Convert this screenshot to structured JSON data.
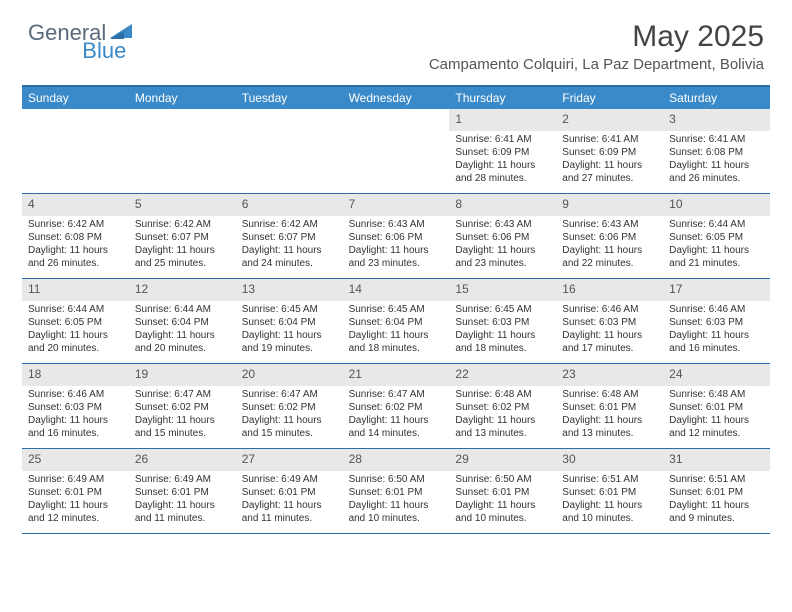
{
  "logo": {
    "general": "General",
    "blue": "Blue"
  },
  "title": "May 2025",
  "location": "Campamento Colquiri, La Paz Department, Bolivia",
  "colors": {
    "header_bg": "#3a8ac9",
    "border": "#2c6fa8",
    "daynum_bg": "#e8e8e8",
    "text": "#333333"
  },
  "weekdays": [
    "Sunday",
    "Monday",
    "Tuesday",
    "Wednesday",
    "Thursday",
    "Friday",
    "Saturday"
  ],
  "weeks": [
    [
      null,
      null,
      null,
      null,
      {
        "n": "1",
        "sr": "6:41 AM",
        "ss": "6:09 PM",
        "dl": "11 hours and 28 minutes."
      },
      {
        "n": "2",
        "sr": "6:41 AM",
        "ss": "6:09 PM",
        "dl": "11 hours and 27 minutes."
      },
      {
        "n": "3",
        "sr": "6:41 AM",
        "ss": "6:08 PM",
        "dl": "11 hours and 26 minutes."
      }
    ],
    [
      {
        "n": "4",
        "sr": "6:42 AM",
        "ss": "6:08 PM",
        "dl": "11 hours and 26 minutes."
      },
      {
        "n": "5",
        "sr": "6:42 AM",
        "ss": "6:07 PM",
        "dl": "11 hours and 25 minutes."
      },
      {
        "n": "6",
        "sr": "6:42 AM",
        "ss": "6:07 PM",
        "dl": "11 hours and 24 minutes."
      },
      {
        "n": "7",
        "sr": "6:43 AM",
        "ss": "6:06 PM",
        "dl": "11 hours and 23 minutes."
      },
      {
        "n": "8",
        "sr": "6:43 AM",
        "ss": "6:06 PM",
        "dl": "11 hours and 23 minutes."
      },
      {
        "n": "9",
        "sr": "6:43 AM",
        "ss": "6:06 PM",
        "dl": "11 hours and 22 minutes."
      },
      {
        "n": "10",
        "sr": "6:44 AM",
        "ss": "6:05 PM",
        "dl": "11 hours and 21 minutes."
      }
    ],
    [
      {
        "n": "11",
        "sr": "6:44 AM",
        "ss": "6:05 PM",
        "dl": "11 hours and 20 minutes."
      },
      {
        "n": "12",
        "sr": "6:44 AM",
        "ss": "6:04 PM",
        "dl": "11 hours and 20 minutes."
      },
      {
        "n": "13",
        "sr": "6:45 AM",
        "ss": "6:04 PM",
        "dl": "11 hours and 19 minutes."
      },
      {
        "n": "14",
        "sr": "6:45 AM",
        "ss": "6:04 PM",
        "dl": "11 hours and 18 minutes."
      },
      {
        "n": "15",
        "sr": "6:45 AM",
        "ss": "6:03 PM",
        "dl": "11 hours and 18 minutes."
      },
      {
        "n": "16",
        "sr": "6:46 AM",
        "ss": "6:03 PM",
        "dl": "11 hours and 17 minutes."
      },
      {
        "n": "17",
        "sr": "6:46 AM",
        "ss": "6:03 PM",
        "dl": "11 hours and 16 minutes."
      }
    ],
    [
      {
        "n": "18",
        "sr": "6:46 AM",
        "ss": "6:03 PM",
        "dl": "11 hours and 16 minutes."
      },
      {
        "n": "19",
        "sr": "6:47 AM",
        "ss": "6:02 PM",
        "dl": "11 hours and 15 minutes."
      },
      {
        "n": "20",
        "sr": "6:47 AM",
        "ss": "6:02 PM",
        "dl": "11 hours and 15 minutes."
      },
      {
        "n": "21",
        "sr": "6:47 AM",
        "ss": "6:02 PM",
        "dl": "11 hours and 14 minutes."
      },
      {
        "n": "22",
        "sr": "6:48 AM",
        "ss": "6:02 PM",
        "dl": "11 hours and 13 minutes."
      },
      {
        "n": "23",
        "sr": "6:48 AM",
        "ss": "6:01 PM",
        "dl": "11 hours and 13 minutes."
      },
      {
        "n": "24",
        "sr": "6:48 AM",
        "ss": "6:01 PM",
        "dl": "11 hours and 12 minutes."
      }
    ],
    [
      {
        "n": "25",
        "sr": "6:49 AM",
        "ss": "6:01 PM",
        "dl": "11 hours and 12 minutes."
      },
      {
        "n": "26",
        "sr": "6:49 AM",
        "ss": "6:01 PM",
        "dl": "11 hours and 11 minutes."
      },
      {
        "n": "27",
        "sr": "6:49 AM",
        "ss": "6:01 PM",
        "dl": "11 hours and 11 minutes."
      },
      {
        "n": "28",
        "sr": "6:50 AM",
        "ss": "6:01 PM",
        "dl": "11 hours and 10 minutes."
      },
      {
        "n": "29",
        "sr": "6:50 AM",
        "ss": "6:01 PM",
        "dl": "11 hours and 10 minutes."
      },
      {
        "n": "30",
        "sr": "6:51 AM",
        "ss": "6:01 PM",
        "dl": "11 hours and 10 minutes."
      },
      {
        "n": "31",
        "sr": "6:51 AM",
        "ss": "6:01 PM",
        "dl": "11 hours and 9 minutes."
      }
    ]
  ],
  "labels": {
    "sunrise": "Sunrise: ",
    "sunset": "Sunset: ",
    "daylight": "Daylight: "
  }
}
